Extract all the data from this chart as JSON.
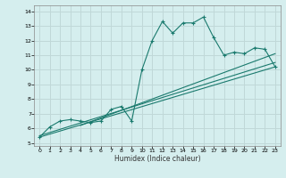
{
  "title": "",
  "xlabel": "Humidex (Indice chaleur)",
  "ylabel": "",
  "xlim": [
    -0.5,
    23.5
  ],
  "ylim": [
    4.8,
    14.4
  ],
  "xticks": [
    0,
    1,
    2,
    3,
    4,
    5,
    6,
    7,
    8,
    9,
    10,
    11,
    12,
    13,
    14,
    15,
    16,
    17,
    18,
    19,
    20,
    21,
    22,
    23
  ],
  "yticks": [
    5,
    6,
    7,
    8,
    9,
    10,
    11,
    12,
    13,
    14
  ],
  "bg_color": "#d5eeee",
  "line_color": "#1a7a6e",
  "grid_color": "#c0d8d8",
  "curve_data": [
    [
      0,
      5.4
    ],
    [
      1,
      6.1
    ],
    [
      2,
      6.5
    ],
    [
      3,
      6.6
    ],
    [
      4,
      6.5
    ],
    [
      5,
      6.4
    ],
    [
      6,
      6.5
    ],
    [
      7,
      7.3
    ],
    [
      8,
      7.5
    ],
    [
      9,
      6.5
    ],
    [
      10,
      10.0
    ],
    [
      11,
      12.0
    ],
    [
      12,
      13.3
    ],
    [
      13,
      12.5
    ],
    [
      14,
      13.2
    ],
    [
      15,
      13.2
    ],
    [
      16,
      13.6
    ],
    [
      17,
      12.2
    ],
    [
      18,
      11.0
    ],
    [
      19,
      11.2
    ],
    [
      20,
      11.1
    ],
    [
      21,
      11.5
    ],
    [
      22,
      11.4
    ],
    [
      23,
      10.2
    ]
  ],
  "line1": [
    [
      0,
      5.4
    ],
    [
      23,
      10.2
    ]
  ],
  "line2": [
    [
      0,
      5.5
    ],
    [
      23,
      10.5
    ]
  ],
  "line3": [
    [
      4,
      6.2
    ],
    [
      23,
      11.1
    ]
  ]
}
